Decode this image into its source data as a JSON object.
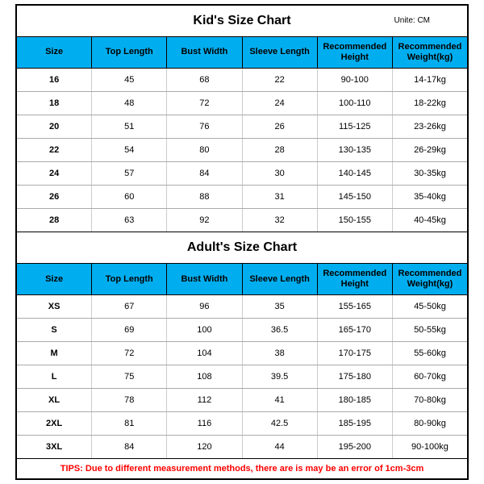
{
  "kids_title": "Kid's Size Chart",
  "adults_title": "Adult's Size Chart",
  "unit_label": "Unite: CM",
  "columns": [
    "Size",
    "Top Length",
    "Bust Width",
    "Sleeve Length",
    "Recommended Height",
    "Recommended Weight(kg)"
  ],
  "kids_rows": [
    [
      "16",
      "45",
      "68",
      "22",
      "90-100",
      "14-17kg"
    ],
    [
      "18",
      "48",
      "72",
      "24",
      "100-110",
      "18-22kg"
    ],
    [
      "20",
      "51",
      "76",
      "26",
      "115-125",
      "23-26kg"
    ],
    [
      "22",
      "54",
      "80",
      "28",
      "130-135",
      "26-29kg"
    ],
    [
      "24",
      "57",
      "84",
      "30",
      "140-145",
      "30-35kg"
    ],
    [
      "26",
      "60",
      "88",
      "31",
      "145-150",
      "35-40kg"
    ],
    [
      "28",
      "63",
      "92",
      "32",
      "150-155",
      "40-45kg"
    ]
  ],
  "adults_rows": [
    [
      "XS",
      "67",
      "96",
      "35",
      "155-165",
      "45-50kg"
    ],
    [
      "S",
      "69",
      "100",
      "36.5",
      "165-170",
      "50-55kg"
    ],
    [
      "M",
      "72",
      "104",
      "38",
      "170-175",
      "55-60kg"
    ],
    [
      "L",
      "75",
      "108",
      "39.5",
      "175-180",
      "60-70kg"
    ],
    [
      "XL",
      "78",
      "112",
      "41",
      "180-185",
      "70-80kg"
    ],
    [
      "2XL",
      "81",
      "116",
      "42.5",
      "185-195",
      "80-90kg"
    ],
    [
      "3XL",
      "84",
      "120",
      "44",
      "195-200",
      "90-100kg"
    ]
  ],
  "tips": "TIPS: Due to different measurement methods, there are is may be an error of 1cm-3cm",
  "header_bg": "#00aeef"
}
